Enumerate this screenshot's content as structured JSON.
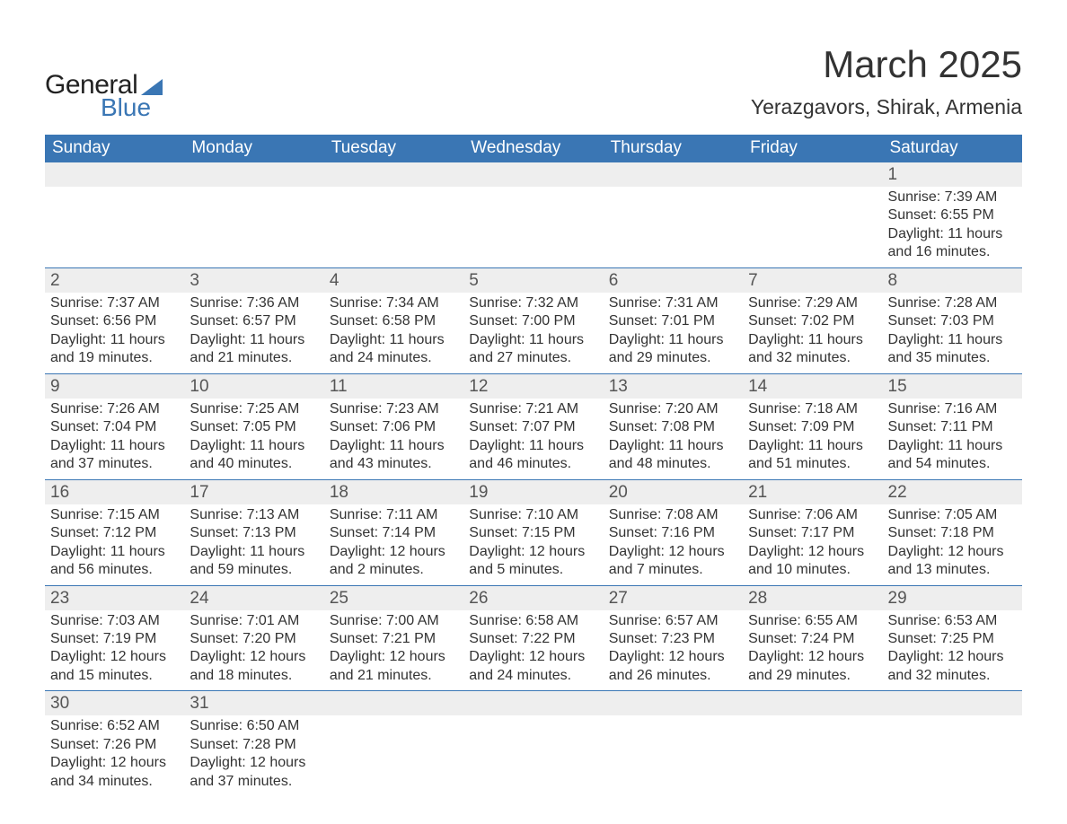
{
  "logo": {
    "text1": "General",
    "text2": "Blue",
    "shape_color": "#3a76b4"
  },
  "title": "March 2025",
  "subtitle": "Yerazgavors, Shirak, Armenia",
  "colors": {
    "header_bg": "#3a76b4",
    "header_text": "#ffffff",
    "daynum_bg": "#eeeeee",
    "daynum_text": "#555555",
    "body_text": "#333333",
    "row_divider": "#3a76b4",
    "page_bg": "#ffffff"
  },
  "fonts": {
    "title_size_pt": 32,
    "subtitle_size_pt": 17,
    "dow_size_pt": 14,
    "daynum_size_pt": 14,
    "info_size_pt": 12
  },
  "dow": [
    "Sunday",
    "Monday",
    "Tuesday",
    "Wednesday",
    "Thursday",
    "Friday",
    "Saturday"
  ],
  "weeks": [
    [
      null,
      null,
      null,
      null,
      null,
      null,
      {
        "n": "1",
        "sunrise": "Sunrise: 7:39 AM",
        "sunset": "Sunset: 6:55 PM",
        "d1": "Daylight: 11 hours",
        "d2": "and 16 minutes."
      }
    ],
    [
      {
        "n": "2",
        "sunrise": "Sunrise: 7:37 AM",
        "sunset": "Sunset: 6:56 PM",
        "d1": "Daylight: 11 hours",
        "d2": "and 19 minutes."
      },
      {
        "n": "3",
        "sunrise": "Sunrise: 7:36 AM",
        "sunset": "Sunset: 6:57 PM",
        "d1": "Daylight: 11 hours",
        "d2": "and 21 minutes."
      },
      {
        "n": "4",
        "sunrise": "Sunrise: 7:34 AM",
        "sunset": "Sunset: 6:58 PM",
        "d1": "Daylight: 11 hours",
        "d2": "and 24 minutes."
      },
      {
        "n": "5",
        "sunrise": "Sunrise: 7:32 AM",
        "sunset": "Sunset: 7:00 PM",
        "d1": "Daylight: 11 hours",
        "d2": "and 27 minutes."
      },
      {
        "n": "6",
        "sunrise": "Sunrise: 7:31 AM",
        "sunset": "Sunset: 7:01 PM",
        "d1": "Daylight: 11 hours",
        "d2": "and 29 minutes."
      },
      {
        "n": "7",
        "sunrise": "Sunrise: 7:29 AM",
        "sunset": "Sunset: 7:02 PM",
        "d1": "Daylight: 11 hours",
        "d2": "and 32 minutes."
      },
      {
        "n": "8",
        "sunrise": "Sunrise: 7:28 AM",
        "sunset": "Sunset: 7:03 PM",
        "d1": "Daylight: 11 hours",
        "d2": "and 35 minutes."
      }
    ],
    [
      {
        "n": "9",
        "sunrise": "Sunrise: 7:26 AM",
        "sunset": "Sunset: 7:04 PM",
        "d1": "Daylight: 11 hours",
        "d2": "and 37 minutes."
      },
      {
        "n": "10",
        "sunrise": "Sunrise: 7:25 AM",
        "sunset": "Sunset: 7:05 PM",
        "d1": "Daylight: 11 hours",
        "d2": "and 40 minutes."
      },
      {
        "n": "11",
        "sunrise": "Sunrise: 7:23 AM",
        "sunset": "Sunset: 7:06 PM",
        "d1": "Daylight: 11 hours",
        "d2": "and 43 minutes."
      },
      {
        "n": "12",
        "sunrise": "Sunrise: 7:21 AM",
        "sunset": "Sunset: 7:07 PM",
        "d1": "Daylight: 11 hours",
        "d2": "and 46 minutes."
      },
      {
        "n": "13",
        "sunrise": "Sunrise: 7:20 AM",
        "sunset": "Sunset: 7:08 PM",
        "d1": "Daylight: 11 hours",
        "d2": "and 48 minutes."
      },
      {
        "n": "14",
        "sunrise": "Sunrise: 7:18 AM",
        "sunset": "Sunset: 7:09 PM",
        "d1": "Daylight: 11 hours",
        "d2": "and 51 minutes."
      },
      {
        "n": "15",
        "sunrise": "Sunrise: 7:16 AM",
        "sunset": "Sunset: 7:11 PM",
        "d1": "Daylight: 11 hours",
        "d2": "and 54 minutes."
      }
    ],
    [
      {
        "n": "16",
        "sunrise": "Sunrise: 7:15 AM",
        "sunset": "Sunset: 7:12 PM",
        "d1": "Daylight: 11 hours",
        "d2": "and 56 minutes."
      },
      {
        "n": "17",
        "sunrise": "Sunrise: 7:13 AM",
        "sunset": "Sunset: 7:13 PM",
        "d1": "Daylight: 11 hours",
        "d2": "and 59 minutes."
      },
      {
        "n": "18",
        "sunrise": "Sunrise: 7:11 AM",
        "sunset": "Sunset: 7:14 PM",
        "d1": "Daylight: 12 hours",
        "d2": "and 2 minutes."
      },
      {
        "n": "19",
        "sunrise": "Sunrise: 7:10 AM",
        "sunset": "Sunset: 7:15 PM",
        "d1": "Daylight: 12 hours",
        "d2": "and 5 minutes."
      },
      {
        "n": "20",
        "sunrise": "Sunrise: 7:08 AM",
        "sunset": "Sunset: 7:16 PM",
        "d1": "Daylight: 12 hours",
        "d2": "and 7 minutes."
      },
      {
        "n": "21",
        "sunrise": "Sunrise: 7:06 AM",
        "sunset": "Sunset: 7:17 PM",
        "d1": "Daylight: 12 hours",
        "d2": "and 10 minutes."
      },
      {
        "n": "22",
        "sunrise": "Sunrise: 7:05 AM",
        "sunset": "Sunset: 7:18 PM",
        "d1": "Daylight: 12 hours",
        "d2": "and 13 minutes."
      }
    ],
    [
      {
        "n": "23",
        "sunrise": "Sunrise: 7:03 AM",
        "sunset": "Sunset: 7:19 PM",
        "d1": "Daylight: 12 hours",
        "d2": "and 15 minutes."
      },
      {
        "n": "24",
        "sunrise": "Sunrise: 7:01 AM",
        "sunset": "Sunset: 7:20 PM",
        "d1": "Daylight: 12 hours",
        "d2": "and 18 minutes."
      },
      {
        "n": "25",
        "sunrise": "Sunrise: 7:00 AM",
        "sunset": "Sunset: 7:21 PM",
        "d1": "Daylight: 12 hours",
        "d2": "and 21 minutes."
      },
      {
        "n": "26",
        "sunrise": "Sunrise: 6:58 AM",
        "sunset": "Sunset: 7:22 PM",
        "d1": "Daylight: 12 hours",
        "d2": "and 24 minutes."
      },
      {
        "n": "27",
        "sunrise": "Sunrise: 6:57 AM",
        "sunset": "Sunset: 7:23 PM",
        "d1": "Daylight: 12 hours",
        "d2": "and 26 minutes."
      },
      {
        "n": "28",
        "sunrise": "Sunrise: 6:55 AM",
        "sunset": "Sunset: 7:24 PM",
        "d1": "Daylight: 12 hours",
        "d2": "and 29 minutes."
      },
      {
        "n": "29",
        "sunrise": "Sunrise: 6:53 AM",
        "sunset": "Sunset: 7:25 PM",
        "d1": "Daylight: 12 hours",
        "d2": "and 32 minutes."
      }
    ],
    [
      {
        "n": "30",
        "sunrise": "Sunrise: 6:52 AM",
        "sunset": "Sunset: 7:26 PM",
        "d1": "Daylight: 12 hours",
        "d2": "and 34 minutes."
      },
      {
        "n": "31",
        "sunrise": "Sunrise: 6:50 AM",
        "sunset": "Sunset: 7:28 PM",
        "d1": "Daylight: 12 hours",
        "d2": "and 37 minutes."
      },
      null,
      null,
      null,
      null,
      null
    ]
  ]
}
